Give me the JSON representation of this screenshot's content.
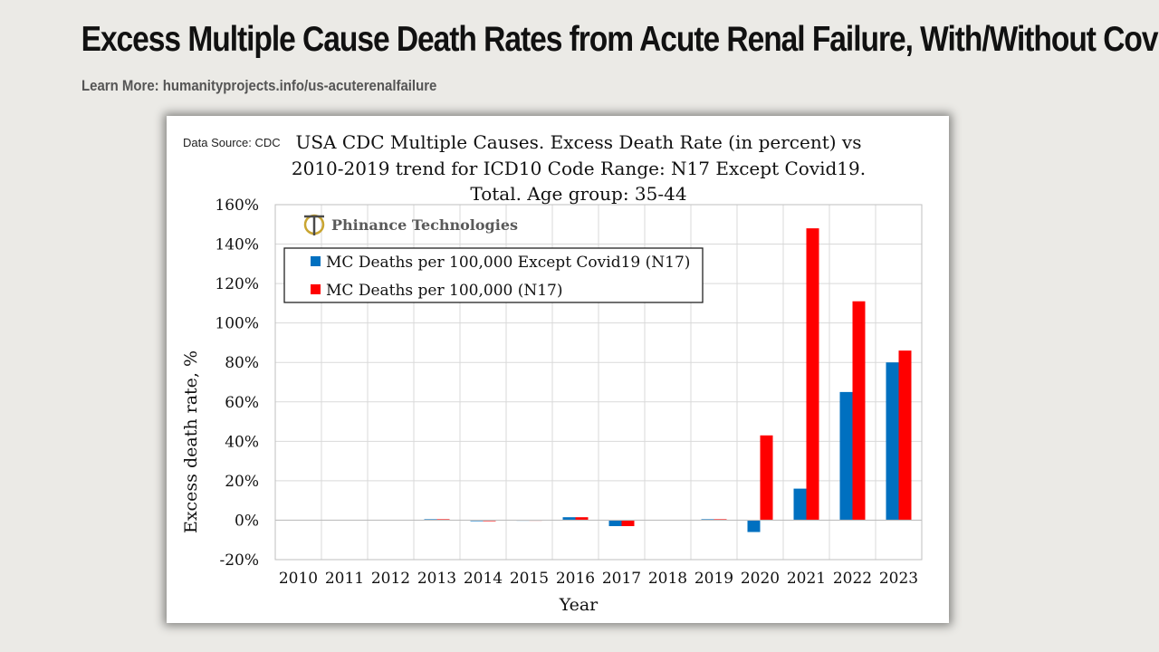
{
  "page": {
    "title": "Excess Multiple Cause Death Rates from Acute Renal Failure, With/Without Covid",
    "subtitle": "Learn More: humanityprojects.info/us-acuterenalfailure"
  },
  "chart": {
    "source": "Data Source: CDC",
    "title_lines": [
      "USA CDC Multiple Causes. Excess Death Rate (in percent) vs",
      "2010-2019 trend for ICD10 Code Range: N17 Except Covid19.",
      "Total. Age group: 35-44"
    ],
    "logo_text": "Phinance Technologies"
  },
  "colors": {
    "blue": "#0070c0",
    "red": "#ff0000"
  },
  "chart_data": {
    "type": "bar",
    "title": "USA CDC Multiple Causes. Excess Death Rate (in percent) vs 2010-2019 trend for ICD10 Code Range: N17 Except Covid19. Total. Age group: 35-44",
    "xlabel": "Year",
    "ylabel": "Excess death rate, %",
    "ylim": [
      -20,
      160
    ],
    "yticks": [
      -20,
      0,
      20,
      40,
      60,
      80,
      100,
      120,
      140,
      160
    ],
    "ytick_labels": [
      "-20%",
      "0%",
      "20%",
      "40%",
      "60%",
      "80%",
      "100%",
      "120%",
      "140%",
      "160%"
    ],
    "categories": [
      "2010",
      "2011",
      "2012",
      "2013",
      "2014",
      "2015",
      "2016",
      "2017",
      "2018",
      "2019",
      "2020",
      "2021",
      "2022",
      "2023"
    ],
    "series": [
      {
        "name": "MC Deaths per 100,000 Except Covid19 (N17)",
        "color": "#0070c0",
        "values": [
          0,
          0,
          0,
          0.5,
          -0.5,
          -0.3,
          1.5,
          -3,
          0.2,
          0.5,
          -6,
          16,
          65,
          80
        ]
      },
      {
        "name": "MC Deaths per 100,000 (N17)",
        "color": "#ff0000",
        "values": [
          0,
          0,
          0,
          0.5,
          -0.5,
          -0.3,
          1.5,
          -3,
          0.2,
          0.5,
          43,
          148,
          111,
          86
        ]
      }
    ],
    "grid": true,
    "legend_position": "top-left"
  }
}
